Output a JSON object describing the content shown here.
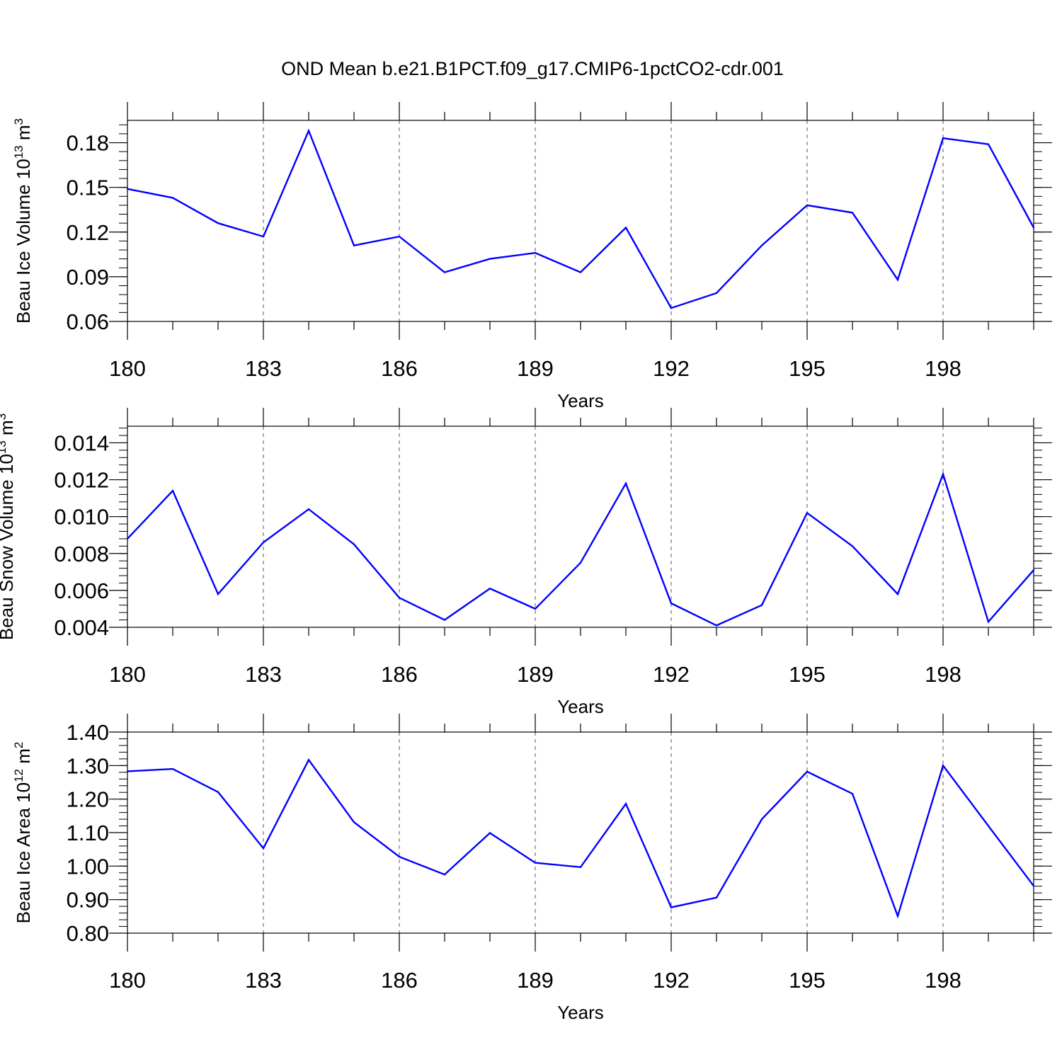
{
  "title": "OND Mean b.e21.B1PCT.f09_g17.CMIP6-1pctCO2-cdr.001",
  "colors": {
    "line": "#0000ff",
    "axis": "#000000",
    "grid": "#555555"
  },
  "chart_data": [
    {
      "type": "line",
      "xlabel": "Years",
      "ylabel_main": "Beau Ice Volume 10",
      "ylabel_exp": "13",
      "ylabel_unit": " m",
      "ylabel_unit_exp": "3",
      "xlim": [
        180,
        200
      ],
      "ylim": [
        0.06,
        0.195
      ],
      "x_ticks": [
        180,
        183,
        186,
        189,
        192,
        195,
        198
      ],
      "x_tick_labels": [
        "180",
        "183",
        "186",
        "189",
        "192",
        "195",
        "198"
      ],
      "y_ticks": [
        0.06,
        0.09,
        0.12,
        0.15,
        0.18
      ],
      "y_tick_labels": [
        "0.06",
        "0.09",
        "0.12",
        "0.15",
        "0.18"
      ],
      "y_minor_step": 0.006,
      "x": [
        180,
        181,
        182,
        183,
        184,
        185,
        186,
        187,
        188,
        189,
        190,
        191,
        192,
        193,
        194,
        195,
        196,
        197,
        198,
        199,
        200
      ],
      "values": [
        0.149,
        0.143,
        0.126,
        0.117,
        0.188,
        0.111,
        0.117,
        0.093,
        0.102,
        0.106,
        0.093,
        0.123,
        0.069,
        0.079,
        0.111,
        0.138,
        0.133,
        0.088,
        0.183,
        0.179,
        0.123
      ]
    },
    {
      "type": "line",
      "xlabel": "Years",
      "ylabel_main": "Beau Snow Volume 10",
      "ylabel_exp": "13",
      "ylabel_unit": " m",
      "ylabel_unit_exp": "3",
      "xlim": [
        180,
        200
      ],
      "ylim": [
        0.004,
        0.0149
      ],
      "x_ticks": [
        180,
        183,
        186,
        189,
        192,
        195,
        198
      ],
      "x_tick_labels": [
        "180",
        "183",
        "186",
        "189",
        "192",
        "195",
        "198"
      ],
      "y_ticks": [
        0.004,
        0.006,
        0.008,
        0.01,
        0.012,
        0.014
      ],
      "y_tick_labels": [
        "0.004",
        "0.006",
        "0.008",
        "0.010",
        "0.012",
        "0.014"
      ],
      "y_minor_step": 0.0004,
      "x": [
        180,
        181,
        182,
        183,
        184,
        185,
        186,
        187,
        188,
        189,
        190,
        191,
        192,
        193,
        194,
        195,
        196,
        197,
        198,
        199,
        200
      ],
      "values": [
        0.0088,
        0.0114,
        0.0058,
        0.0086,
        0.0104,
        0.0085,
        0.0056,
        0.0044,
        0.0061,
        0.005,
        0.0075,
        0.0118,
        0.0053,
        0.0041,
        0.0052,
        0.0102,
        0.0084,
        0.0058,
        0.0123,
        0.0043,
        0.0071
      ]
    },
    {
      "type": "line",
      "xlabel": "Years",
      "ylabel_main": "Beau Ice Area 10",
      "ylabel_exp": "12",
      "ylabel_unit": " m",
      "ylabel_unit_exp": "2",
      "xlim": [
        180,
        200
      ],
      "ylim": [
        0.8,
        1.4
      ],
      "x_ticks": [
        180,
        183,
        186,
        189,
        192,
        195,
        198
      ],
      "x_tick_labels": [
        "180",
        "183",
        "186",
        "189",
        "192",
        "195",
        "198"
      ],
      "y_ticks": [
        0.8,
        0.9,
        1.0,
        1.1,
        1.2,
        1.3,
        1.4
      ],
      "y_tick_labels": [
        "0.80",
        "0.90",
        "1.00",
        "1.10",
        "1.20",
        "1.30",
        "1.40"
      ],
      "y_minor_step": 0.02,
      "x": [
        180,
        181,
        182,
        183,
        184,
        185,
        186,
        187,
        188,
        189,
        190,
        191,
        192,
        193,
        194,
        195,
        196,
        197,
        198,
        199,
        200
      ],
      "values": [
        1.283,
        1.29,
        1.221,
        1.053,
        1.317,
        1.131,
        1.028,
        0.975,
        1.099,
        1.01,
        0.997,
        1.186,
        0.877,
        0.906,
        1.14,
        1.282,
        1.216,
        0.851,
        1.3,
        1.12,
        0.941
      ]
    }
  ]
}
